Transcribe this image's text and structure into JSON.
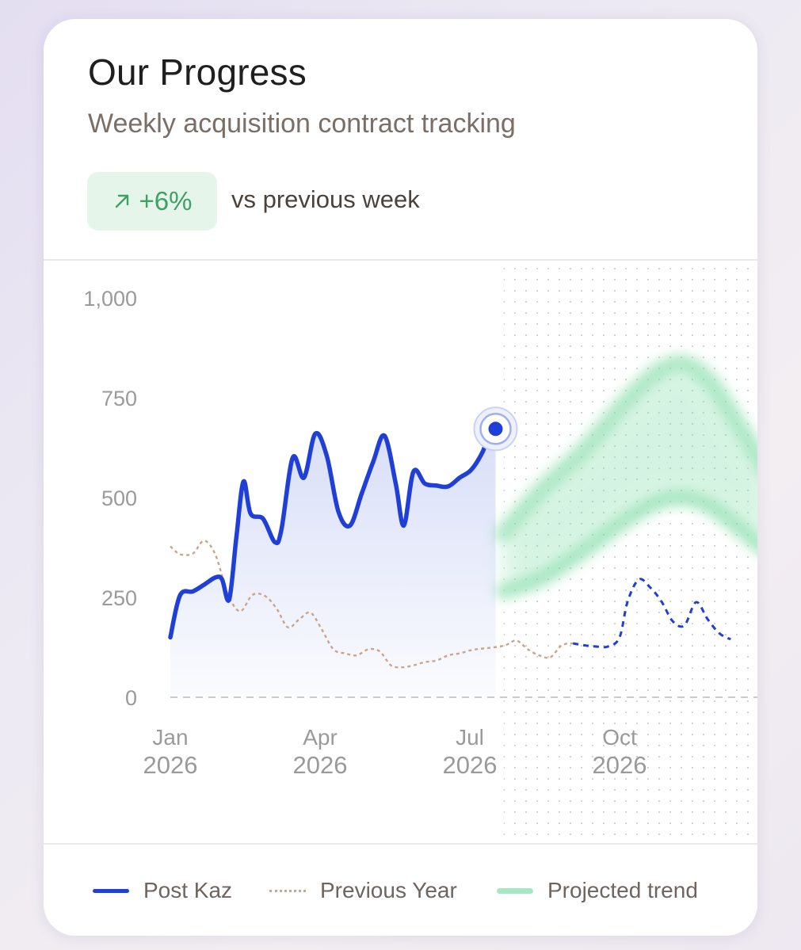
{
  "card": {
    "title": "Our Progress",
    "subtitle": "Weekly acquisition contract tracking"
  },
  "badge": {
    "icon": "arrow-up-right-icon",
    "value": "+6%",
    "caption": "vs previous week"
  },
  "colors": {
    "primary": "#1f3fd6",
    "previous_year": "#c9a58a",
    "projected": "#7fdca6",
    "badge_bg": "#e6f5ea",
    "badge_text": "#3fa065"
  },
  "chart_data": {
    "type": "line",
    "x_axis_type": "date",
    "ylim": [
      0,
      1000
    ],
    "y_ticks": [
      0,
      250,
      500,
      750,
      1000
    ],
    "y_tick_labels": [
      "0",
      "250",
      "500",
      "750",
      "1,000"
    ],
    "xlim": [
      "2026-01-01",
      "2026-12-31"
    ],
    "x_ticks": [
      "2026-01-01",
      "2026-04-01",
      "2026-07-01",
      "2026-10-01"
    ],
    "x_tick_labels": [
      {
        "month": "Jan",
        "year": "2026"
      },
      {
        "month": "Apr",
        "year": "2026"
      },
      {
        "month": "Jul",
        "year": "2026"
      },
      {
        "month": "Oct",
        "year": "2026"
      }
    ],
    "forecast_start": "2026-07-22",
    "series": [
      {
        "name": "Post Kaz",
        "style": "solid",
        "points": [
          [
            "2026-01-01",
            150
          ],
          [
            "2026-01-07",
            255
          ],
          [
            "2026-01-15",
            265
          ],
          [
            "2026-01-22",
            282
          ],
          [
            "2026-01-29",
            300
          ],
          [
            "2026-02-02",
            295
          ],
          [
            "2026-02-06",
            245
          ],
          [
            "2026-02-10",
            400
          ],
          [
            "2026-02-14",
            540
          ],
          [
            "2026-02-18",
            460
          ],
          [
            "2026-02-25",
            447
          ],
          [
            "2026-03-04",
            388
          ],
          [
            "2026-03-08",
            420
          ],
          [
            "2026-03-15",
            600
          ],
          [
            "2026-03-22",
            550
          ],
          [
            "2026-03-29",
            660
          ],
          [
            "2026-04-05",
            605
          ],
          [
            "2026-04-12",
            465
          ],
          [
            "2026-04-19",
            430
          ],
          [
            "2026-04-26",
            510
          ],
          [
            "2026-05-03",
            590
          ],
          [
            "2026-05-10",
            655
          ],
          [
            "2026-05-17",
            535
          ],
          [
            "2026-05-22",
            430
          ],
          [
            "2026-05-28",
            565
          ],
          [
            "2026-06-04",
            535
          ],
          [
            "2026-06-11",
            530
          ],
          [
            "2026-06-18",
            528
          ],
          [
            "2026-06-25",
            550
          ],
          [
            "2026-07-02",
            570
          ],
          [
            "2026-07-09",
            615
          ],
          [
            "2026-07-13",
            660
          ],
          [
            "2026-07-17",
            672
          ]
        ]
      },
      {
        "name": "Previous Year",
        "style": "dotted",
        "points": [
          [
            "2026-01-01",
            378
          ],
          [
            "2026-01-07",
            358
          ],
          [
            "2026-01-15",
            360
          ],
          [
            "2026-01-22",
            392
          ],
          [
            "2026-01-29",
            357
          ],
          [
            "2026-02-05",
            262
          ],
          [
            "2026-02-12",
            215
          ],
          [
            "2026-02-19",
            256
          ],
          [
            "2026-02-26",
            254
          ],
          [
            "2026-03-05",
            222
          ],
          [
            "2026-03-12",
            175
          ],
          [
            "2026-03-19",
            195
          ],
          [
            "2026-03-26",
            212
          ],
          [
            "2026-04-02",
            170
          ],
          [
            "2026-04-09",
            120
          ],
          [
            "2026-04-16",
            110
          ],
          [
            "2026-04-23",
            105
          ],
          [
            "2026-04-30",
            120
          ],
          [
            "2026-05-07",
            115
          ],
          [
            "2026-05-14",
            80
          ],
          [
            "2026-05-21",
            75
          ],
          [
            "2026-05-28",
            80
          ],
          [
            "2026-06-04",
            88
          ],
          [
            "2026-06-11",
            92
          ],
          [
            "2026-06-18",
            105
          ],
          [
            "2026-06-25",
            110
          ],
          [
            "2026-07-02",
            118
          ],
          [
            "2026-07-09",
            122
          ],
          [
            "2026-07-16",
            125
          ],
          [
            "2026-07-23",
            130
          ],
          [
            "2026-07-30",
            142
          ],
          [
            "2026-08-06",
            120
          ],
          [
            "2026-08-13",
            105
          ],
          [
            "2026-08-20",
            100
          ],
          [
            "2026-08-27",
            130
          ],
          [
            "2026-09-03",
            135
          ],
          [
            "2026-09-10",
            130
          ],
          [
            "2026-09-17",
            127
          ],
          [
            "2026-09-24",
            127
          ],
          [
            "2026-10-01",
            150
          ],
          [
            "2026-10-06",
            240
          ],
          [
            "2026-10-13",
            295
          ],
          [
            "2026-10-20",
            275
          ],
          [
            "2026-10-27",
            240
          ],
          [
            "2026-11-03",
            190
          ],
          [
            "2026-11-10",
            180
          ],
          [
            "2026-11-17",
            238
          ],
          [
            "2026-11-24",
            195
          ],
          [
            "2026-12-01",
            160
          ],
          [
            "2026-12-08",
            145
          ]
        ]
      },
      {
        "name": "Projected trend",
        "style": "band",
        "upper": [
          [
            "2026-07-22",
            410
          ],
          [
            "2026-08-15",
            520
          ],
          [
            "2026-09-10",
            620
          ],
          [
            "2026-10-05",
            740
          ],
          [
            "2026-10-25",
            815
          ],
          [
            "2026-11-10",
            835
          ],
          [
            "2026-11-25",
            790
          ],
          [
            "2026-12-10",
            700
          ],
          [
            "2026-12-31",
            560
          ]
        ],
        "lower": [
          [
            "2026-07-22",
            265
          ],
          [
            "2026-08-15",
            300
          ],
          [
            "2026-09-10",
            370
          ],
          [
            "2026-10-05",
            445
          ],
          [
            "2026-10-25",
            490
          ],
          [
            "2026-11-10",
            500
          ],
          [
            "2026-11-25",
            480
          ],
          [
            "2026-12-10",
            435
          ],
          [
            "2026-12-31",
            365
          ]
        ]
      }
    ],
    "legend_position": "bottom"
  },
  "legend": {
    "items": [
      {
        "label": "Post Kaz",
        "style": "solid",
        "color": "#1f3fd6"
      },
      {
        "label": "Previous Year",
        "style": "dotted",
        "color": "#c9a58a"
      },
      {
        "label": "Projected trend",
        "style": "band",
        "color": "#7fdca6"
      }
    ]
  }
}
